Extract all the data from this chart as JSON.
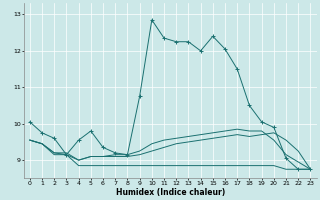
{
  "title": "",
  "xlabel": "Humidex (Indice chaleur)",
  "ylabel": "",
  "bg_color": "#cce8e8",
  "line_color": "#1a7070",
  "grid_color": "#ffffff",
  "xlim": [
    -0.5,
    23.5
  ],
  "ylim": [
    8.5,
    13.3
  ],
  "yticks": [
    9,
    10,
    11,
    12,
    13
  ],
  "xticks": [
    0,
    1,
    2,
    3,
    4,
    5,
    6,
    7,
    8,
    9,
    10,
    11,
    12,
    13,
    14,
    15,
    16,
    17,
    18,
    19,
    20,
    21,
    22,
    23
  ],
  "lines": [
    {
      "x": [
        0,
        1,
        2,
        3,
        4,
        5,
        6,
        7,
        8,
        9,
        10,
        11,
        12,
        13,
        14,
        15,
        16,
        17,
        18,
        19,
        20,
        21,
        22,
        23
      ],
      "y": [
        10.05,
        9.75,
        9.6,
        9.15,
        9.55,
        9.8,
        9.35,
        9.2,
        9.15,
        10.75,
        12.85,
        12.35,
        12.25,
        12.25,
        12.0,
        12.4,
        12.05,
        11.5,
        10.5,
        10.05,
        9.9,
        9.05,
        8.75,
        8.75
      ],
      "marker": true
    },
    {
      "x": [
        0,
        1,
        2,
        3,
        4,
        5,
        6,
        7,
        8,
        9,
        10,
        11,
        12,
        13,
        14,
        15,
        16,
        17,
        18,
        19,
        20,
        21,
        22,
        23
      ],
      "y": [
        9.55,
        9.45,
        9.15,
        9.15,
        8.85,
        8.85,
        8.85,
        8.85,
        8.85,
        8.85,
        8.85,
        8.85,
        8.85,
        8.85,
        8.85,
        8.85,
        8.85,
        8.85,
        8.85,
        8.85,
        8.85,
        8.75,
        8.75,
        8.75
      ],
      "marker": false
    },
    {
      "x": [
        0,
        1,
        2,
        3,
        4,
        5,
        6,
        7,
        8,
        9,
        10,
        11,
        12,
        13,
        14,
        15,
        16,
        17,
        18,
        19,
        20,
        21,
        22,
        23
      ],
      "y": [
        9.55,
        9.45,
        9.2,
        9.15,
        9.0,
        9.1,
        9.1,
        9.1,
        9.1,
        9.15,
        9.25,
        9.35,
        9.45,
        9.5,
        9.55,
        9.6,
        9.65,
        9.7,
        9.65,
        9.7,
        9.75,
        9.55,
        9.25,
        8.75
      ],
      "marker": false
    },
    {
      "x": [
        0,
        1,
        2,
        3,
        4,
        5,
        6,
        7,
        8,
        9,
        10,
        11,
        12,
        13,
        14,
        15,
        16,
        17,
        18,
        19,
        20,
        21,
        22,
        23
      ],
      "y": [
        9.55,
        9.45,
        9.2,
        9.2,
        9.0,
        9.1,
        9.1,
        9.15,
        9.15,
        9.25,
        9.45,
        9.55,
        9.6,
        9.65,
        9.7,
        9.75,
        9.8,
        9.85,
        9.8,
        9.8,
        9.55,
        9.15,
        8.95,
        8.75
      ],
      "marker": false
    }
  ]
}
